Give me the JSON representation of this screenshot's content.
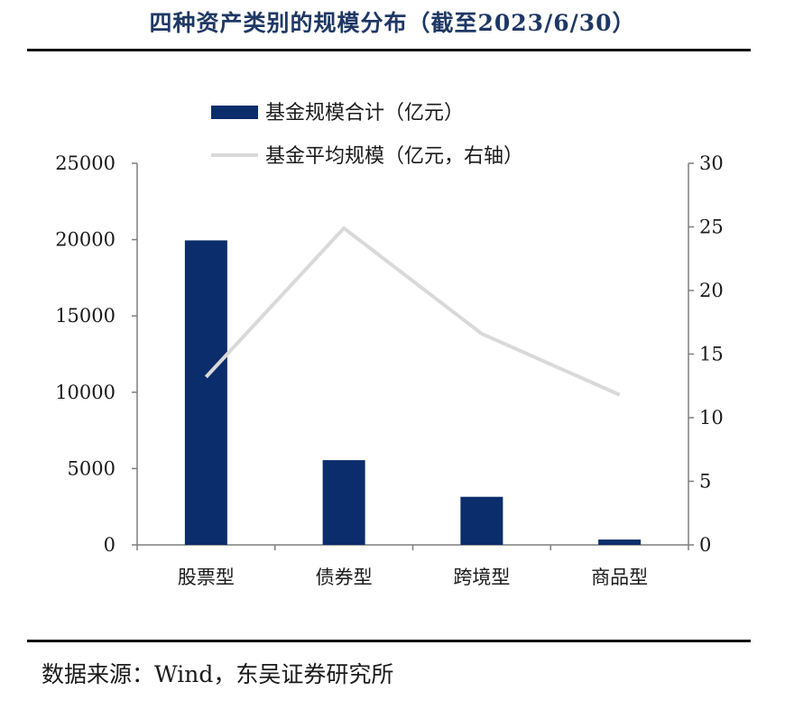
{
  "title": "四种资产类别的规模分布（截至2023/6/30）",
  "source": "数据来源：Wind，东吴证券研究所",
  "colors": {
    "bar": "#0b2d6b",
    "line": "#d9d9d9",
    "title": "#1f3864"
  },
  "chart_data": {
    "type": "bar",
    "categories": [
      "股票型",
      "债券型",
      "跨境型",
      "商品型"
    ],
    "series": [
      {
        "name": "基金规模合计（亿元）",
        "type": "bar",
        "axis": "left",
        "values": [
          19950,
          5550,
          3150,
          350
        ]
      },
      {
        "name": "基金平均规模（亿元，右轴）",
        "type": "line",
        "axis": "right",
        "values": [
          13.2,
          24.9,
          16.6,
          11.8
        ]
      }
    ],
    "yticks_left": [
      "0",
      "5000",
      "10000",
      "15000",
      "20000",
      "25000"
    ],
    "yticks_right": [
      "0",
      "5",
      "10",
      "15",
      "20",
      "25",
      "30"
    ],
    "ylim_left": [
      0,
      25000
    ],
    "ylim_right": [
      0,
      30
    ],
    "grid": false,
    "legend_position": "top-left"
  }
}
